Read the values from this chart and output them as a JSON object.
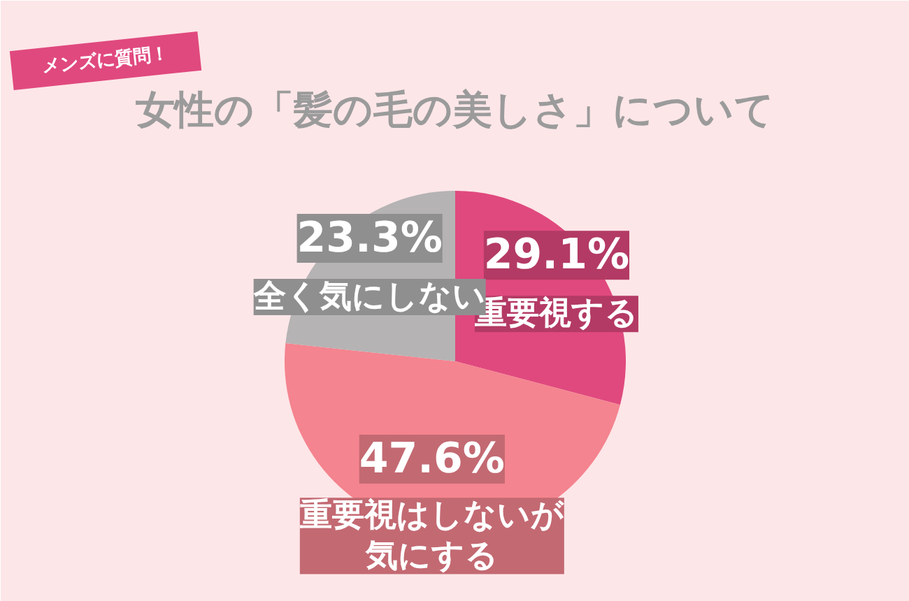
{
  "chart_data": {
    "type": "pie",
    "title": "女性の「髪の毛の美しさ」について",
    "subtitle": "メンズに質問！",
    "categories": [
      "重要視する",
      "重要視はしないが気にする",
      "全く気にしない"
    ],
    "values": [
      29.1,
      47.6,
      23.3
    ],
    "colors": [
      "#e0497e",
      "#f4848f",
      "#b5b3b4"
    ],
    "value_labels": [
      "29.1%",
      "47.6%",
      "23.3%"
    ]
  }
}
